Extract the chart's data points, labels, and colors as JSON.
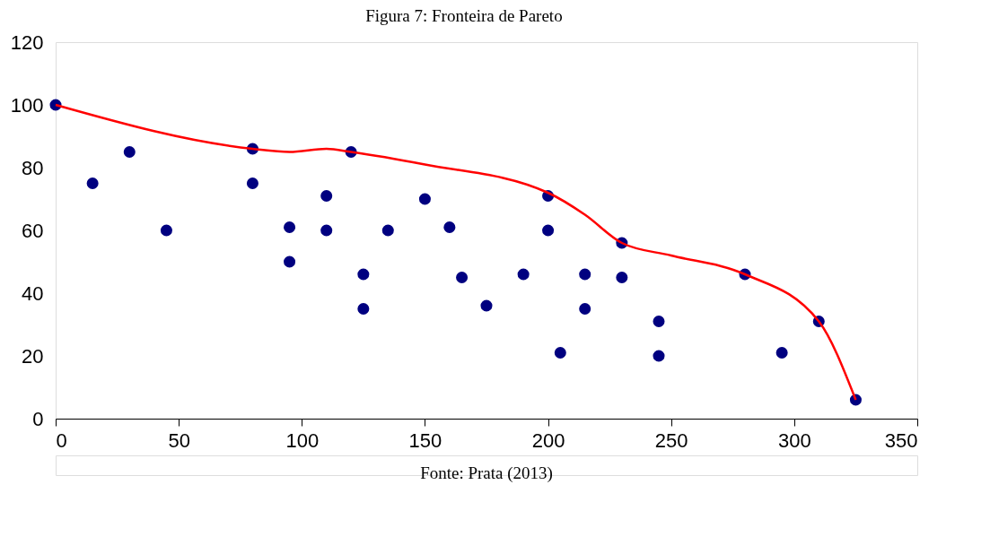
{
  "chart_data": {
    "type": "scatter",
    "title": "Figura 7: Fronteira de Pareto",
    "annotations": [
      "Fonte: Prata (2013)"
    ],
    "xlim": [
      0,
      350
    ],
    "xticks": [
      0,
      50,
      100,
      150,
      200,
      250,
      300,
      350
    ],
    "ylim": [
      0,
      120
    ],
    "yticks": [
      0,
      20,
      40,
      60,
      80,
      100,
      120
    ],
    "series": [
      {
        "color": "#000080",
        "marker": "circle",
        "x": [
          0,
          15,
          30,
          45,
          80,
          80,
          95,
          95,
          110,
          110,
          120,
          125,
          125,
          135,
          150,
          160,
          165,
          175,
          190,
          200,
          200,
          205,
          215,
          215,
          230,
          230,
          245,
          245,
          280,
          295,
          310,
          325
        ],
        "values": [
          100,
          75,
          85,
          60,
          86,
          75,
          61,
          50,
          71,
          60,
          85,
          46,
          35,
          60,
          70,
          61,
          45,
          36,
          46,
          71,
          60,
          21,
          46,
          35,
          56,
          45,
          31,
          20,
          46,
          21,
          31,
          6
        ]
      },
      {
        "type": "line",
        "color": "#ff0000",
        "marker": "none",
        "line_style": "solid",
        "x": [
          0,
          80,
          95,
          110,
          120,
          150,
          200,
          215,
          230,
          250,
          280,
          310,
          325
        ],
        "values": [
          100,
          86,
          85,
          86,
          85,
          81,
          72,
          65,
          56,
          52,
          46,
          31,
          6
        ]
      }
    ]
  }
}
